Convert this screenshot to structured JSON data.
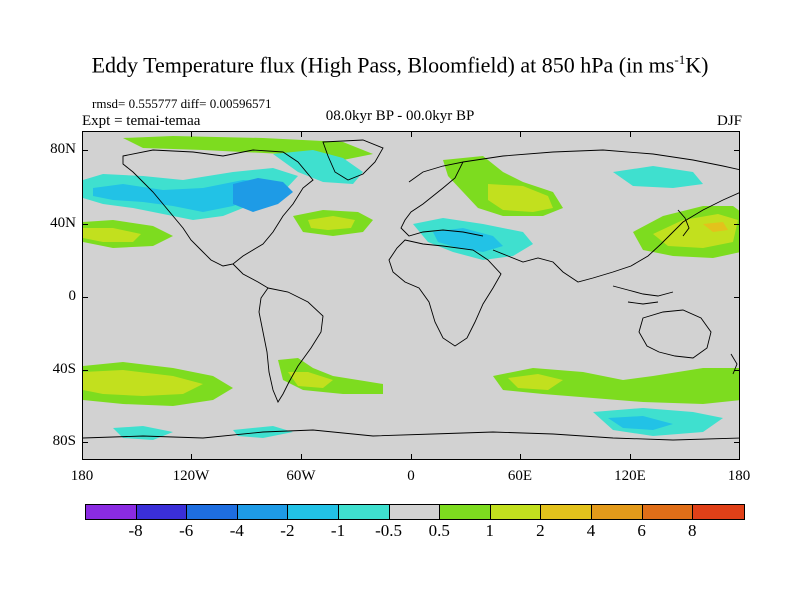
{
  "title_main": "Eddy Temperature flux (High Pass, Bloomfield) at 850 hPa (in ms",
  "title_sup": "-1",
  "title_end": "K)",
  "stats": "rmsd= 0.555777 diff= 0.00596571",
  "expt": "Expt = temai-temaa",
  "subtitle": "08.0kyr BP - 00.0kyr BP",
  "season": "DJF",
  "y_axis_labels": [
    "80N",
    "40N",
    "0",
    "40S",
    "80S"
  ],
  "x_axis_labels": [
    "180",
    "120W",
    "60W",
    "0",
    "60E",
    "120E",
    "180"
  ],
  "colorbar": {
    "colors": [
      "#8a2be2",
      "#3a2fd8",
      "#1e6ee0",
      "#1e9be6",
      "#22c2e6",
      "#3fe0cf",
      "#d2d2d2",
      "#7ddc1f",
      "#c2e01e",
      "#e3c21c",
      "#e39a1a",
      "#e06e18",
      "#e04018"
    ],
    "labels": [
      "-8",
      "-6",
      "-4",
      "-2",
      "-1",
      "-0.5",
      "0.5",
      "1",
      "2",
      "4",
      "6",
      "8"
    ]
  },
  "colors": {
    "land_background": "#d2d2d2",
    "positive_weak": "#7ddc1f",
    "positive_mid": "#c2e01e",
    "positive_strong": "#e3c21c",
    "negative_weak": "#3fe0cf",
    "negative_mid": "#22c2e6",
    "negative_strong": "#1e9be6"
  }
}
